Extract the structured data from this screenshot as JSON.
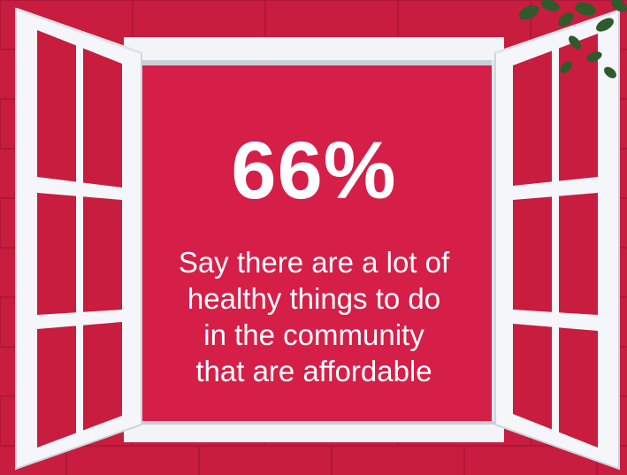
{
  "stat": {
    "value": "66%",
    "caption_lines": [
      "Say there are a lot of",
      "healthy things to do",
      "in the community",
      "that are affordable"
    ]
  },
  "colors": {
    "wall": "#c81d3e",
    "brick_shadow": "#b0173a",
    "window_opening": "#d61f48",
    "frame": "#f2f4f7",
    "frame_shade": "#c9cfd8",
    "leaves": "#2f5a2a"
  },
  "icons": {
    "window": "open-window-illustration",
    "plant": "ivy-leaves-decoration"
  }
}
